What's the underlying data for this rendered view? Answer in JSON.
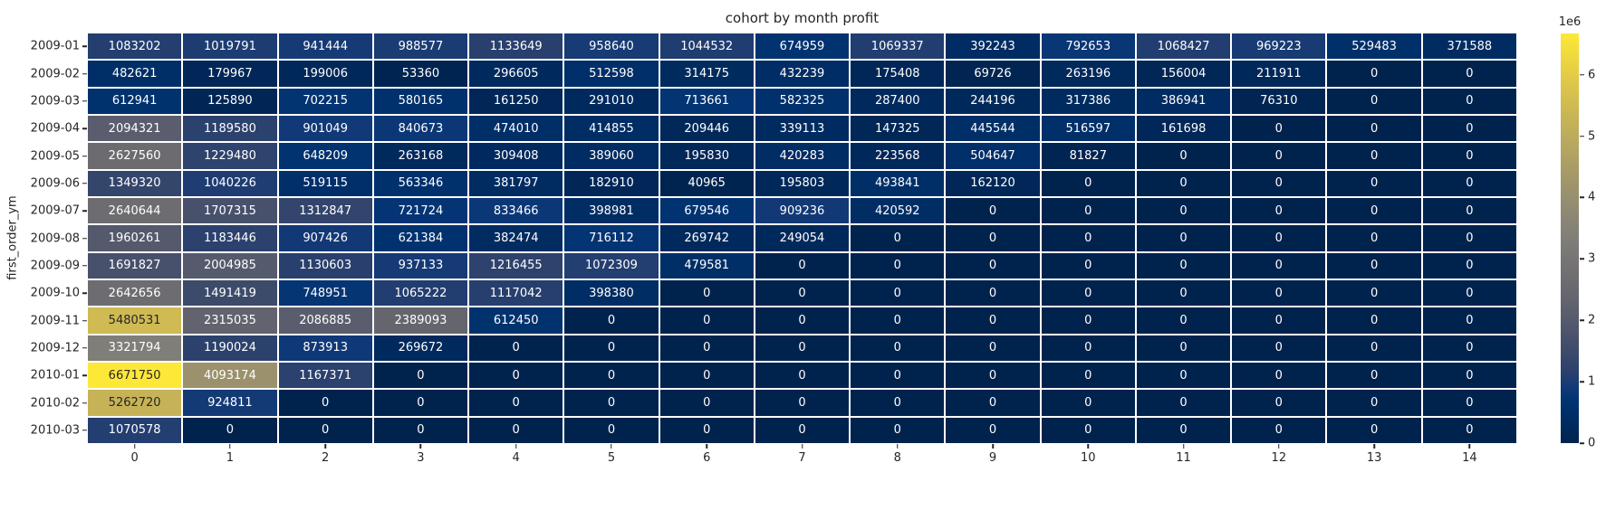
{
  "chart_data": {
    "type": "heatmap",
    "title": "cohort by month profit",
    "xlabel": "",
    "ylabel": "first_order_ym",
    "x_categories": [
      "0",
      "1",
      "2",
      "3",
      "4",
      "5",
      "6",
      "7",
      "8",
      "9",
      "10",
      "11",
      "12",
      "13",
      "14"
    ],
    "y_categories": [
      "2009-01",
      "2009-02",
      "2009-03",
      "2009-04",
      "2009-05",
      "2009-06",
      "2009-07",
      "2009-08",
      "2009-09",
      "2009-10",
      "2009-11",
      "2009-12",
      "2010-01",
      "2010-02",
      "2010-03"
    ],
    "matrix": [
      [
        1083202,
        1019791,
        941444,
        988577,
        1133649,
        958640,
        1044532,
        674959,
        1069337,
        392243,
        792653,
        1068427,
        969223,
        529483,
        371588
      ],
      [
        482621,
        179967,
        199006,
        53360,
        296605,
        512598,
        314175,
        432239,
        175408,
        69726,
        263196,
        156004,
        211911,
        0,
        0
      ],
      [
        612941,
        125890,
        702215,
        580165,
        161250,
        291010,
        713661,
        582325,
        287400,
        244196,
        317386,
        386941,
        76310,
        0,
        0
      ],
      [
        2094321,
        1189580,
        901049,
        840673,
        474010,
        414855,
        209446,
        339113,
        147325,
        445544,
        516597,
        161698,
        0,
        0,
        0
      ],
      [
        2627560,
        1229480,
        648209,
        263168,
        309408,
        389060,
        195830,
        420283,
        223568,
        504647,
        81827,
        0,
        0,
        0,
        0
      ],
      [
        1349320,
        1040226,
        519115,
        563346,
        381797,
        182910,
        40965,
        195803,
        493841,
        162120,
        0,
        0,
        0,
        0,
        0
      ],
      [
        2640644,
        1707315,
        1312847,
        721724,
        833466,
        398981,
        679546,
        909236,
        420592,
        0,
        0,
        0,
        0,
        0,
        0
      ],
      [
        1960261,
        1183446,
        907426,
        621384,
        382474,
        716112,
        269742,
        249054,
        0,
        0,
        0,
        0,
        0,
        0,
        0
      ],
      [
        1691827,
        2004985,
        1130603,
        937133,
        1216455,
        1072309,
        479581,
        0,
        0,
        0,
        0,
        0,
        0,
        0,
        0
      ],
      [
        2642656,
        1491419,
        748951,
        1065222,
        1117042,
        398380,
        0,
        0,
        0,
        0,
        0,
        0,
        0,
        0,
        0
      ],
      [
        5480531,
        2315035,
        2086885,
        2389093,
        612450,
        0,
        0,
        0,
        0,
        0,
        0,
        0,
        0,
        0,
        0
      ],
      [
        3321794,
        1190024,
        873913,
        269672,
        0,
        0,
        0,
        0,
        0,
        0,
        0,
        0,
        0,
        0,
        0
      ],
      [
        6671750,
        4093174,
        1167371,
        0,
        0,
        0,
        0,
        0,
        0,
        0,
        0,
        0,
        0,
        0,
        0
      ],
      [
        5262720,
        924811,
        0,
        0,
        0,
        0,
        0,
        0,
        0,
        0,
        0,
        0,
        0,
        0,
        0
      ],
      [
        1070578,
        0,
        0,
        0,
        0,
        0,
        0,
        0,
        0,
        0,
        0,
        0,
        0,
        0,
        0
      ]
    ],
    "vmin": 0,
    "vmax": 6671750,
    "colormap": "cividis",
    "colormap_stops": [
      [
        0.0,
        0,
        35,
        78
      ],
      [
        0.05,
        0,
        43,
        96
      ],
      [
        0.1,
        0,
        51,
        113
      ],
      [
        0.13,
        14,
        56,
        120
      ],
      [
        0.17,
        41,
        64,
        110
      ],
      [
        0.22,
        60,
        74,
        107
      ],
      [
        0.28,
        80,
        86,
        108
      ],
      [
        0.35,
        99,
        100,
        110
      ],
      [
        0.42,
        114,
        112,
        113
      ],
      [
        0.5,
        128,
        126,
        120
      ],
      [
        0.58,
        147,
        140,
        113
      ],
      [
        0.65,
        163,
        152,
        105
      ],
      [
        0.72,
        181,
        166,
        96
      ],
      [
        0.8,
        201,
        181,
        86
      ],
      [
        0.88,
        222,
        199,
        73
      ],
      [
        0.94,
        238,
        216,
        63
      ],
      [
        1.0,
        253,
        232,
        55
      ]
    ],
    "colorbar": {
      "offset_label": "1e6",
      "tick_values": [
        0,
        1,
        2,
        3,
        4,
        5,
        6
      ],
      "tick_multiplier": 1000000
    },
    "legend_position": "right",
    "grid": false
  },
  "colors": {
    "background": "#ffffff",
    "tick_text": "#262626",
    "annot_dark": "#262626",
    "annot_light": "#ffffff"
  }
}
